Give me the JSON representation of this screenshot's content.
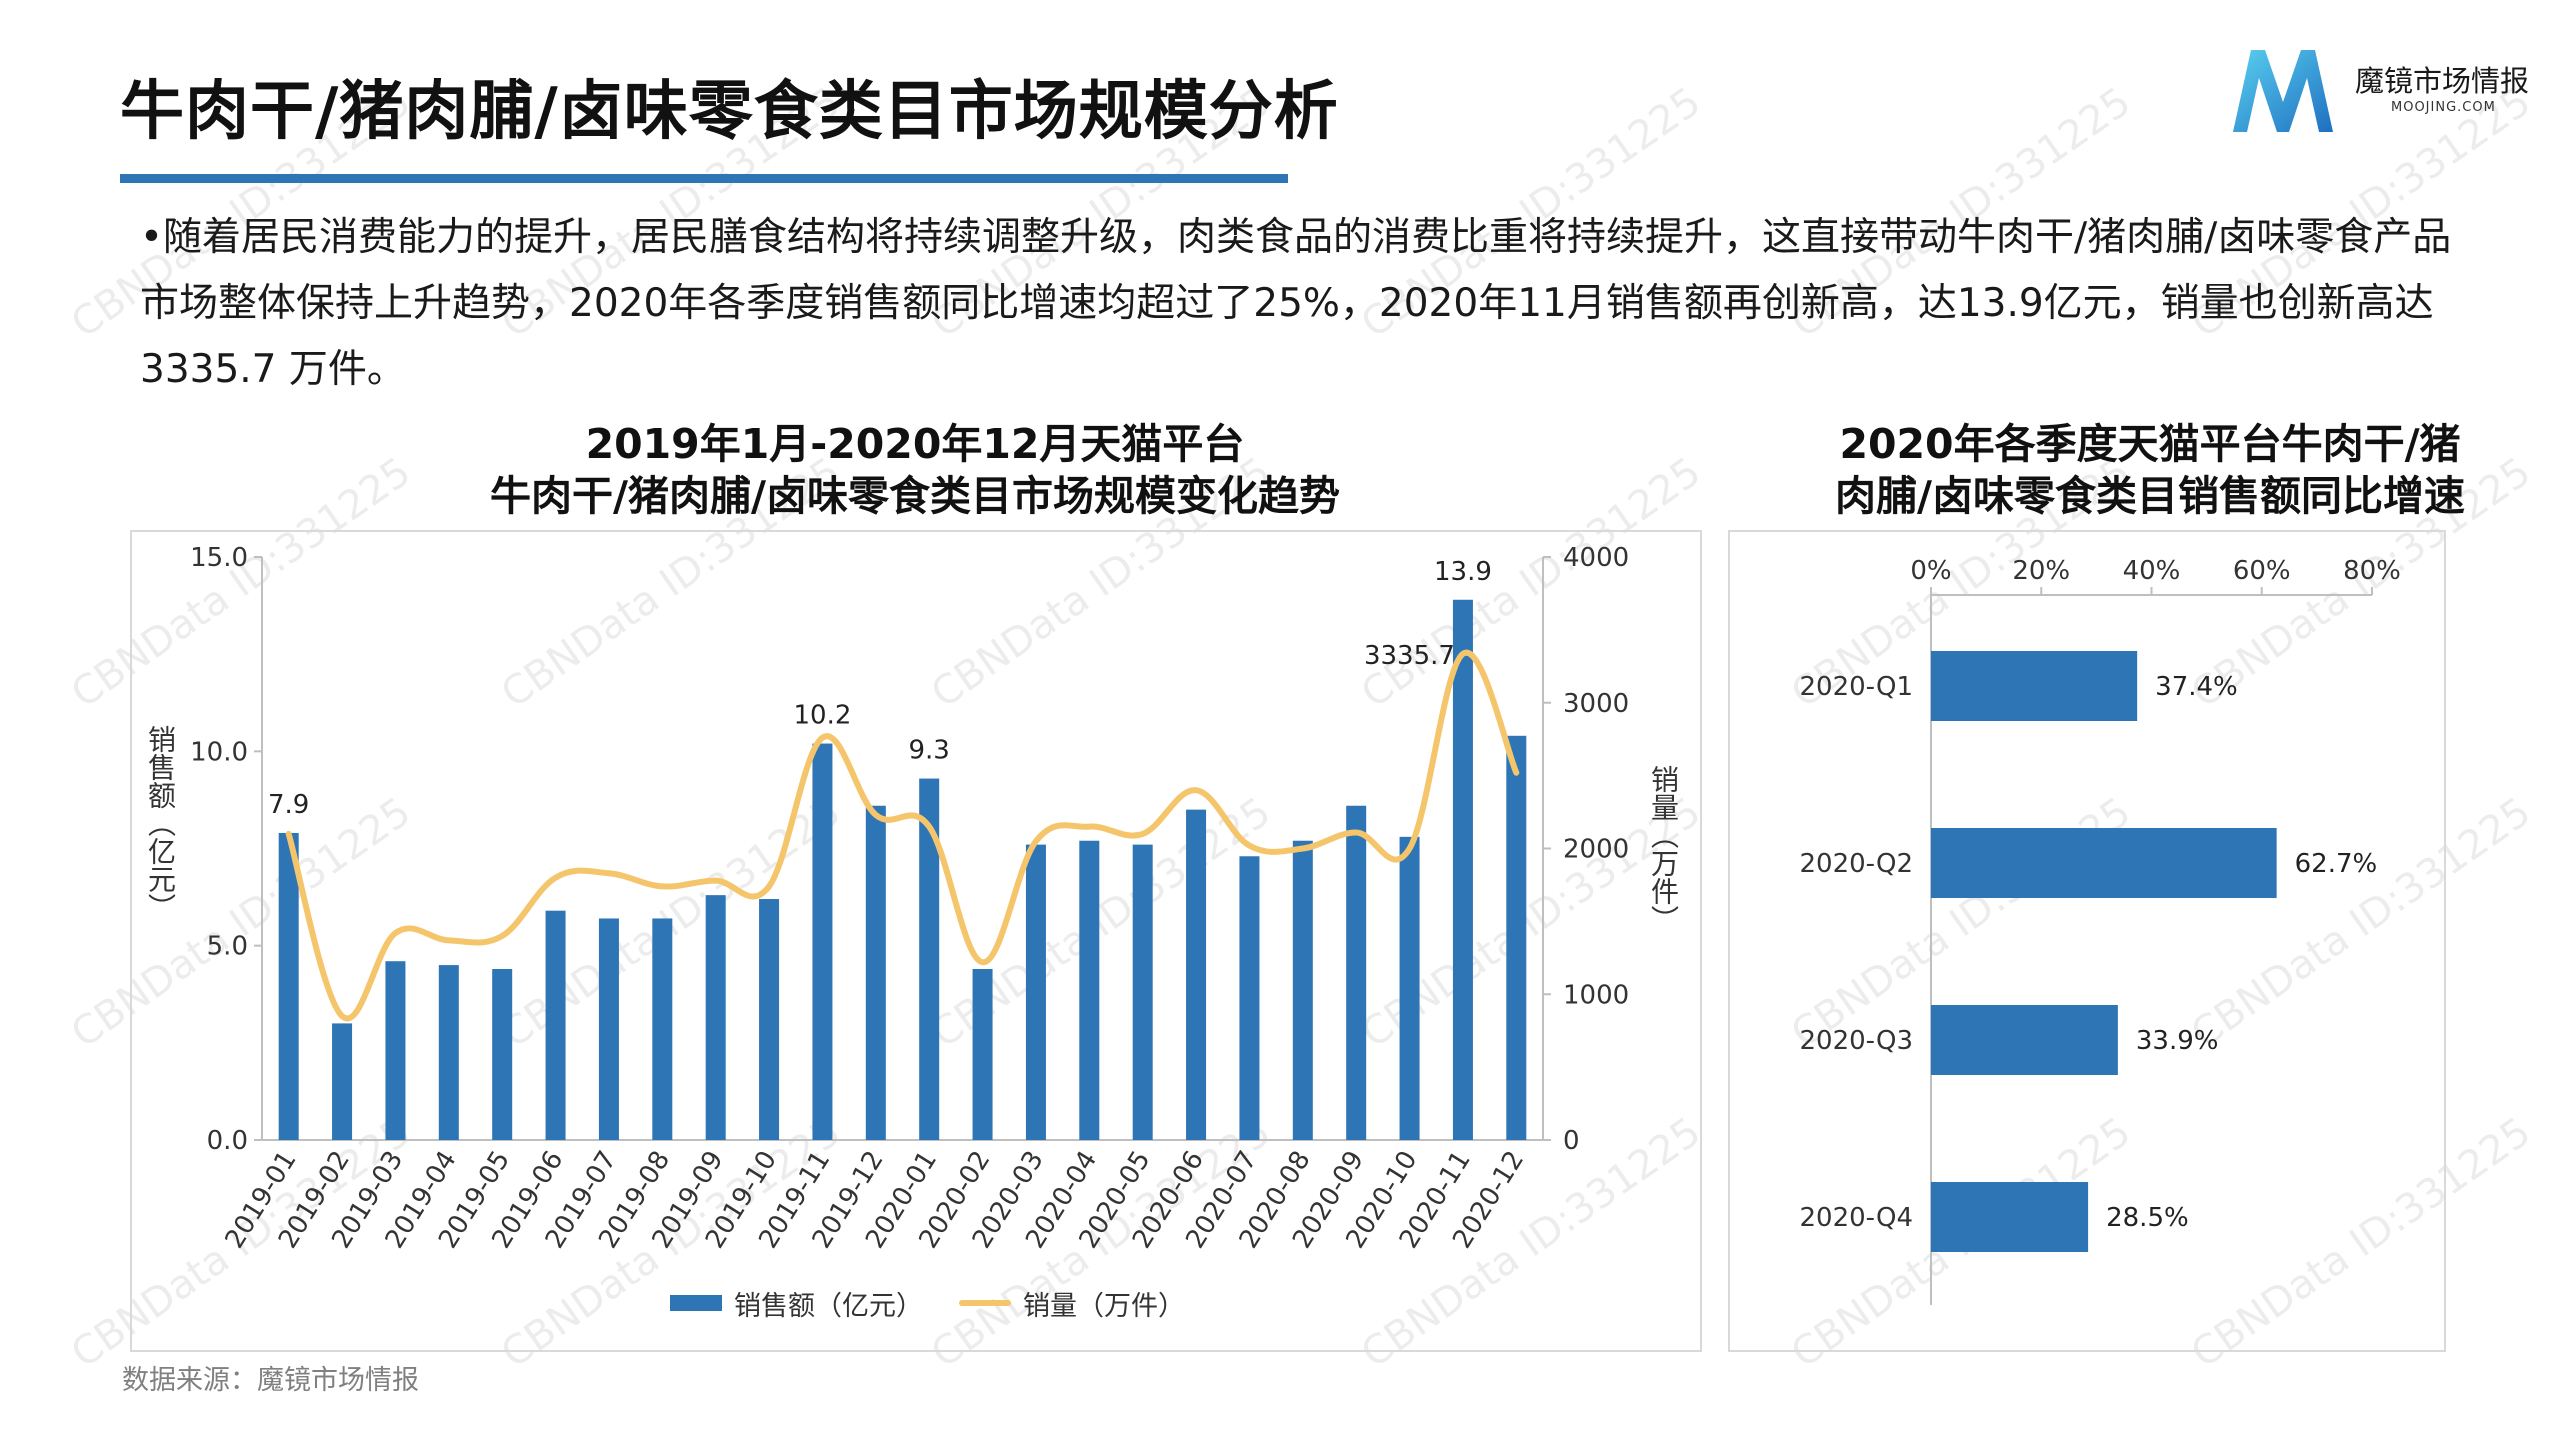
{
  "header": {
    "title": "牛肉干/猪肉脯/卤味零食类目市场规模分析",
    "logo_name": "魔镜市场情报",
    "logo_sub": "MOOJING.COM"
  },
  "summary": "•随着居民消费能力的提升，居民膳食结构将持续调整升级，肉类食品的消费比重将持续提升，这直接带动牛肉干/猪肉脯/卤味零食产品市场整体保持上升趋势，2020年各季度销售额同比增速均超过了25%，2020年11月销售额再创新高，达13.9亿元，销量也创新高达3335.7 万件。",
  "left_chart_title_line1": "2019年1月-2020年12月天猫平台",
  "left_chart_title_line2": "牛肉干/猪肉脯/卤味零食类目市场规模变化趋势",
  "right_chart_title_line1": "2020年各季度天猫平台牛肉干/猪",
  "right_chart_title_line2": "肉脯/卤味零食类目销售额同比增速",
  "source": "数据来源：魔镜市场情报",
  "watermark": "CBNData ID:331225",
  "colors": {
    "accent": "#2e75b6",
    "line": "#f5c56b",
    "bar": "#2e75b6"
  },
  "chart_data": [
    {
      "type": "bar",
      "categories": [
        "2019-01",
        "2019-02",
        "2019-03",
        "2019-04",
        "2019-05",
        "2019-06",
        "2019-07",
        "2019-08",
        "2019-09",
        "2019-10",
        "2019-11",
        "2019-12",
        "2020-01",
        "2020-02",
        "2020-03",
        "2020-04",
        "2020-05",
        "2020-06",
        "2020-07",
        "2020-08",
        "2020-09",
        "2020-10",
        "2020-11",
        "2020-12"
      ],
      "series": [
        {
          "name": "销售额（亿元）",
          "type": "bar",
          "axis": "left",
          "values": [
            7.9,
            3.0,
            4.6,
            4.5,
            4.4,
            5.9,
            5.7,
            5.7,
            6.3,
            6.2,
            10.2,
            8.6,
            9.3,
            4.4,
            7.6,
            7.7,
            7.6,
            8.5,
            7.3,
            7.7,
            8.6,
            7.8,
            13.9,
            10.4
          ]
        },
        {
          "name": "销量（万件）",
          "type": "line",
          "axis": "right",
          "values": [
            2100,
            850,
            1420,
            1370,
            1400,
            1800,
            1830,
            1740,
            1780,
            1740,
            2760,
            2230,
            2150,
            1220,
            2050,
            2150,
            2100,
            2400,
            2020,
            2000,
            2110,
            2000,
            3335.7,
            2520
          ]
        }
      ],
      "data_labels": [
        {
          "index": 0,
          "text": "7.9"
        },
        {
          "index": 10,
          "text": "10.2"
        },
        {
          "index": 12,
          "text": "9.3"
        },
        {
          "index": 22,
          "text": "13.9"
        },
        {
          "index": 22,
          "text": "3335.7"
        }
      ],
      "y_left": {
        "label": "销售额（亿元）",
        "range": [
          0,
          15
        ],
        "ticks": [
          "0.0",
          "5.0",
          "10.0",
          "15.0"
        ]
      },
      "y_right": {
        "label": "销量（万件）",
        "range": [
          0,
          4000
        ],
        "ticks": [
          "0",
          "1000",
          "2000",
          "3000",
          "4000"
        ]
      },
      "legend": [
        "销售额（亿元）",
        "销量（万件）"
      ],
      "legend_position": "bottom"
    },
    {
      "type": "bar",
      "orientation": "horizontal",
      "categories": [
        "2020-Q1",
        "2020-Q2",
        "2020-Q3",
        "2020-Q4"
      ],
      "values": [
        37.4,
        62.7,
        33.9,
        28.5
      ],
      "value_labels": [
        "37.4%",
        "62.7%",
        "33.9%",
        "28.5%"
      ],
      "x_range": [
        0,
        80
      ],
      "x_ticks": [
        "0%",
        "20%",
        "40%",
        "60%",
        "80%"
      ],
      "x_axis_position": "top"
    }
  ]
}
